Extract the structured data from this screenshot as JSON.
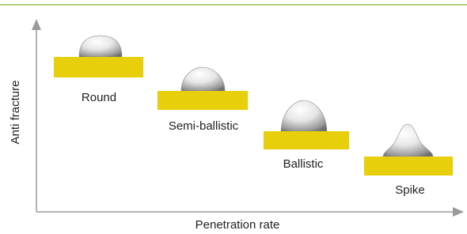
{
  "axes": {
    "y_label": "Anti fracture",
    "x_label": "Penetration rate"
  },
  "items": [
    {
      "label": "Round"
    },
    {
      "label": "Semi-ballistic"
    },
    {
      "label": "Ballistic"
    },
    {
      "label": "Spike"
    }
  ]
}
